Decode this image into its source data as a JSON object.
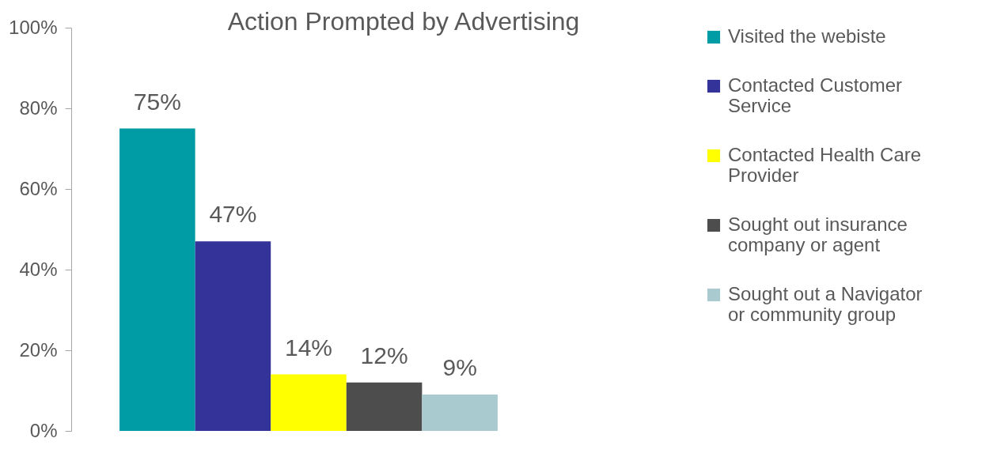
{
  "chart_data": {
    "type": "bar",
    "title": "Action Prompted by Advertising",
    "categories": [
      null
    ],
    "series": [
      {
        "name": "Visited the webiste",
        "color": "#009ca6",
        "values": [
          75
        ],
        "value_labels": [
          "75%"
        ]
      },
      {
        "name": "Contacted Customer Service",
        "color": "#333399",
        "values": [
          47
        ],
        "value_labels": [
          "47%"
        ]
      },
      {
        "name": "Contacted Health Care Provider",
        "color": "#ffff00",
        "values": [
          14
        ],
        "value_labels": [
          "14%"
        ]
      },
      {
        "name": "Sought out insurance company or agent",
        "color": "#4d4d4d",
        "values": [
          12
        ],
        "value_labels": [
          "12%"
        ]
      },
      {
        "name": "Sought out a Navigator or community group",
        "color": "#a9cbd0",
        "values": [
          9
        ],
        "value_labels": [
          "9%"
        ]
      }
    ],
    "ylim": [
      0,
      100
    ],
    "yticks": [
      {
        "value": 0,
        "label": "0%"
      },
      {
        "value": 20,
        "label": "20%"
      },
      {
        "value": 40,
        "label": "40%"
      },
      {
        "value": 60,
        "label": "60%"
      },
      {
        "value": 80,
        "label": "80%"
      },
      {
        "value": 100,
        "label": "100%"
      }
    ],
    "grid": false,
    "legend": "right"
  }
}
